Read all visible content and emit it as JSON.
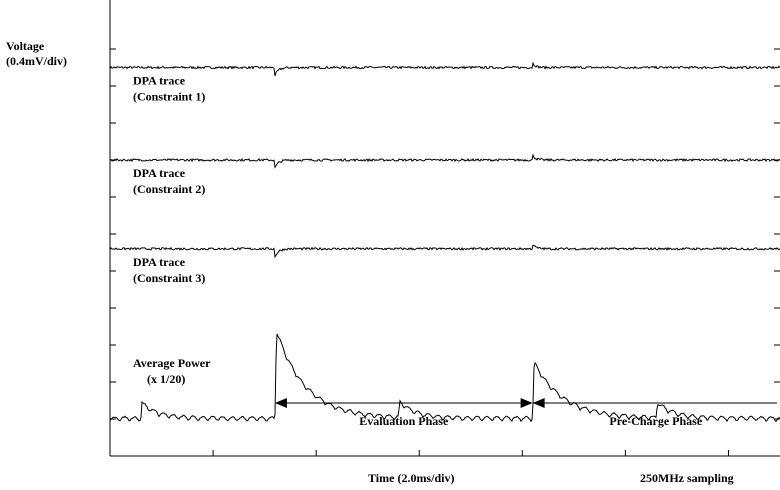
{
  "chart_data": {
    "type": "line",
    "title": "",
    "ylabel": [
      "Voltage",
      "(0.4mV/div)"
    ],
    "xlabel": "Time (2.0ms/div)",
    "sampling_note": "250MHz sampling",
    "x_divisions": 6.5,
    "y_divisions": 11.2,
    "x_unit": "ms/div",
    "x_per_div": 2.0,
    "grid": false,
    "series": [
      {
        "name": "",
        "label": [
          "DPA trace",
          "(Constraint 1)"
        ],
        "kind": "dpa",
        "baseline_div": 10.5,
        "dip_time_div": 1.6,
        "bump_time_div": 4.1
      },
      {
        "name": "",
        "label": [
          "DPA trace",
          "(Constraint 2)"
        ],
        "kind": "dpa",
        "baseline_div": 8.0,
        "dip_time_div": 1.6,
        "bump_time_div": 4.1
      },
      {
        "name": "",
        "label": [
          "DPA trace",
          "(Constraint 3)"
        ],
        "kind": "dpa",
        "baseline_div": 5.6,
        "dip_time_div": 1.6,
        "bump_time_div": 4.1
      },
      {
        "name": "",
        "label": [
          "Average Power",
          "(x 1/20)"
        ],
        "kind": "power",
        "baseline_div": 1.0,
        "big_spikes": [
          {
            "time_div": 1.6,
            "peak_div": 3.5
          },
          {
            "time_div": 4.1,
            "peak_div": 2.6
          }
        ],
        "small_spikes": [
          {
            "time_div": 0.3,
            "peak_div": 1.45
          },
          {
            "time_div": 2.8,
            "peak_div": 1.45
          },
          {
            "time_div": 5.3,
            "peak_div": 1.45
          }
        ],
        "ripple_period_div": 0.095
      }
    ],
    "annotations": [
      {
        "text": "Evaluation Phase",
        "from_div": 1.6,
        "to_div": 4.1
      },
      {
        "text": "Pre-Charge Phase",
        "from_div": 4.1,
        "to_div": 6.5
      }
    ]
  }
}
